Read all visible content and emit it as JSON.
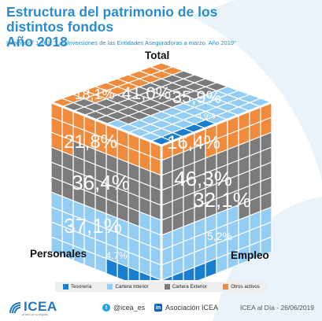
{
  "header": {
    "title_line1": "Estructura del patrimonio de los distintos fondos",
    "title_line2": "Año 2018",
    "subtitle": "Informe nº 1.561: \"Las Inversiones de las Entidades Aseguradoras a marzo. Año 2019\""
  },
  "colors": {
    "tesoreria": "#1a7ed0",
    "cartera_interior": "#93cdf3",
    "cartera_exterior": "#7b7b7b",
    "otros_activos": "#f08a3c"
  },
  "legend": {
    "tesoreria": "Tesorería",
    "cartera_interior": "Cartera Interior",
    "cartera_exterior": "Cartera Exterior",
    "otros_activos": "Otros activos"
  },
  "chart_data": {
    "type": "table",
    "categories": [
      "Tesorería",
      "Cartera Interior",
      "Cartera Exterior",
      "Otros activos"
    ],
    "series": [
      {
        "name": "Total",
        "values": [
          4.9,
          35.9,
          41.0,
          18.1
        ],
        "labels": [
          "4,9%",
          "35,9%",
          "41,0%",
          "18,1%"
        ]
      },
      {
        "name": "Personales",
        "values": [
          4.7,
          37.1,
          36.4,
          21.8
        ],
        "labels": [
          "4,7%",
          "37,1%",
          "36,4%",
          "21,8%"
        ]
      },
      {
        "name": "Empleo",
        "values": [
          5.2,
          32.1,
          46.3,
          16.4
        ],
        "labels": [
          "5,2%",
          "32,1%",
          "46,3%",
          "16,4%"
        ]
      }
    ]
  },
  "footer": {
    "logo": "ICEA",
    "logo_tagline": "al lado de tu negocio",
    "twitter": "@icea_es",
    "linkedin": "Asociación ICEA",
    "date": "ICEA al Día - 26/06/2019"
  }
}
